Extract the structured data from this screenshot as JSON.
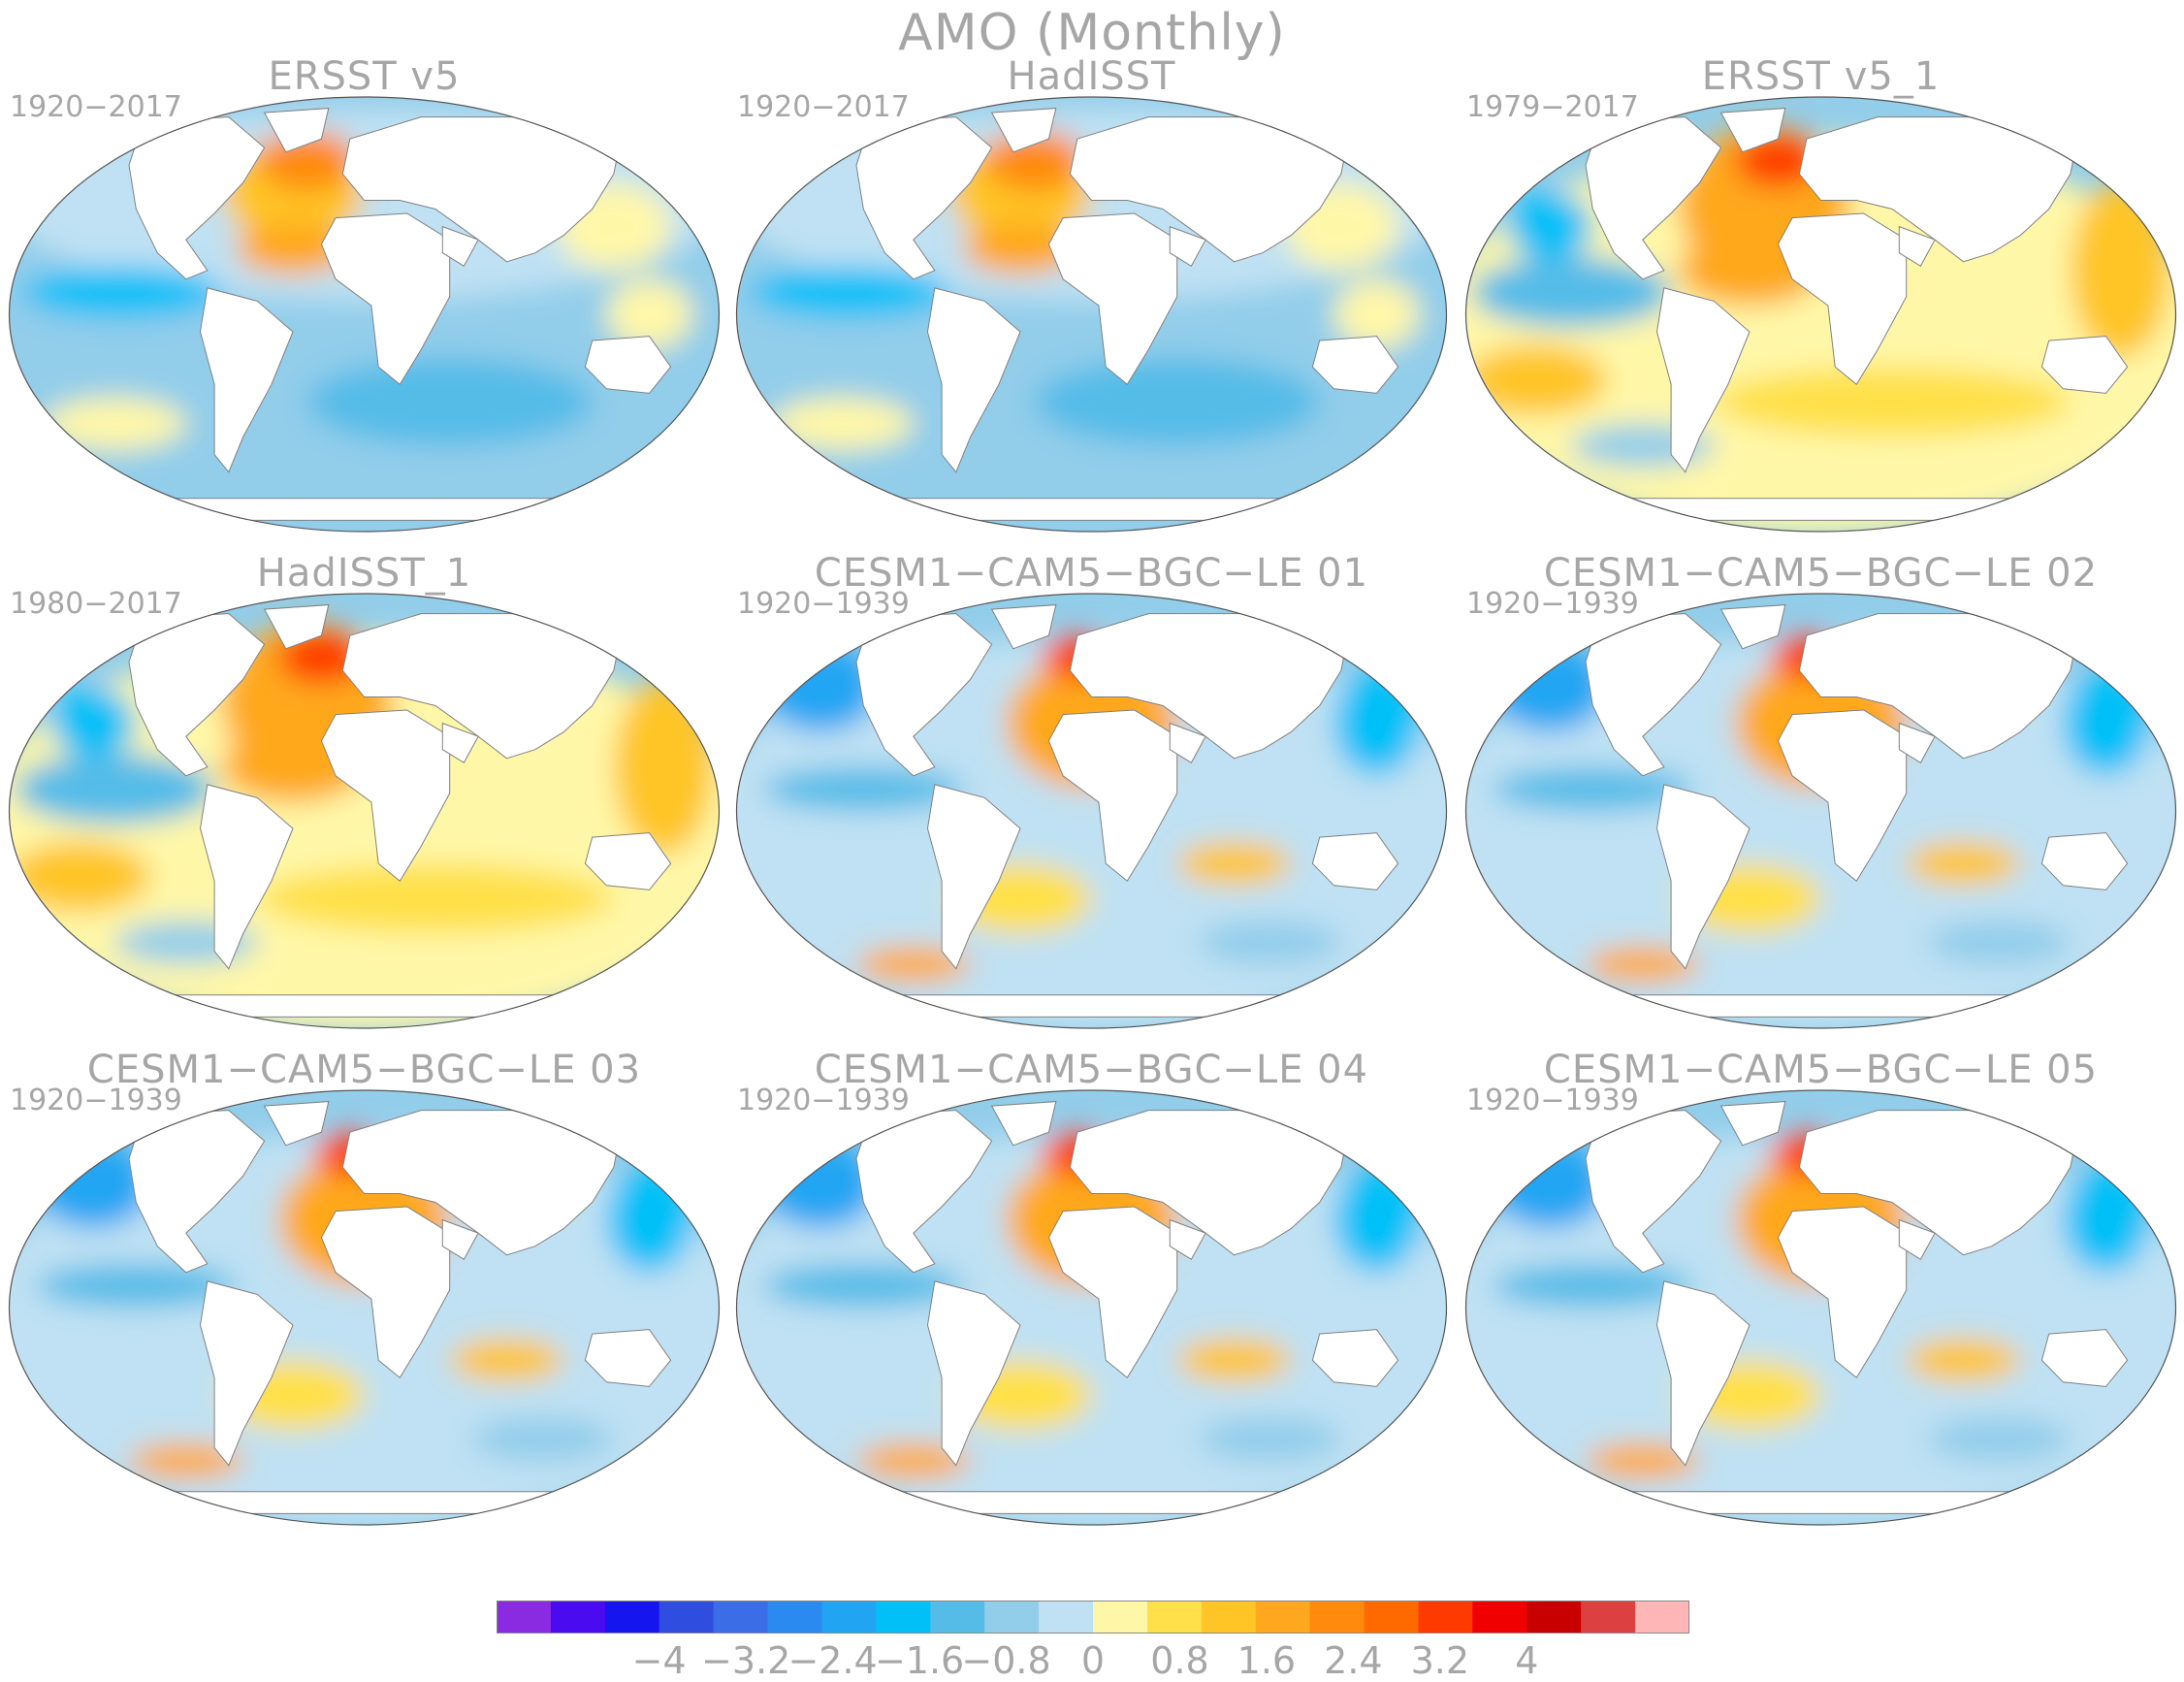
{
  "figure": {
    "title": "AMO (Monthly)"
  },
  "panels": [
    {
      "title": "ERSST v5",
      "period": "1920−2017",
      "pattern": "obs_long"
    },
    {
      "title": "HadISST",
      "period": "1920−2017",
      "pattern": "obs_long"
    },
    {
      "title": "ERSST v5_1",
      "period": "1979−2017",
      "pattern": "obs_recent"
    },
    {
      "title": "HadISST_1",
      "period": "1980−2017",
      "pattern": "obs_recent"
    },
    {
      "title": "CESM1−CAM5−BGC−LE 01",
      "period": "1920−1939",
      "pattern": "model"
    },
    {
      "title": "CESM1−CAM5−BGC−LE 02",
      "period": "1920−1939",
      "pattern": "model"
    },
    {
      "title": "CESM1−CAM5−BGC−LE 03",
      "period": "1920−1939",
      "pattern": "model"
    },
    {
      "title": "CESM1−CAM5−BGC−LE 04",
      "period": "1920−1939",
      "pattern": "model"
    },
    {
      "title": "CESM1−CAM5−BGC−LE 05",
      "period": "1920−1939",
      "pattern": "model"
    }
  ],
  "colorbar": {
    "tick_labels": [
      "−4",
      "−3.2",
      "−2.4",
      "−1.6",
      "−0.8",
      "0",
      "0.8",
      "1.6",
      "2.4",
      "3.2",
      "4"
    ],
    "tick_values": [
      -4,
      -3.2,
      -2.4,
      -1.6,
      -0.8,
      0,
      0.8,
      1.6,
      2.4,
      3.2,
      4
    ],
    "colors": [
      "#8a2be2",
      "#4b0bf0",
      "#1515f0",
      "#2f4ee0",
      "#3b6ee6",
      "#2a8af0",
      "#21a5f3",
      "#00c0f8",
      "#55bce8",
      "#92cdea",
      "#bfe1f3",
      "#fff7a8",
      "#ffe04a",
      "#ffc527",
      "#ffa81f",
      "#ff8a0e",
      "#ff6a00",
      "#ff3a00",
      "#f00000",
      "#c80000",
      "#dd4040",
      "#ffb6b6"
    ]
  },
  "colors": {
    "land": "#ffffff",
    "coast": "#808080",
    "text": "#a6a6a6"
  }
}
